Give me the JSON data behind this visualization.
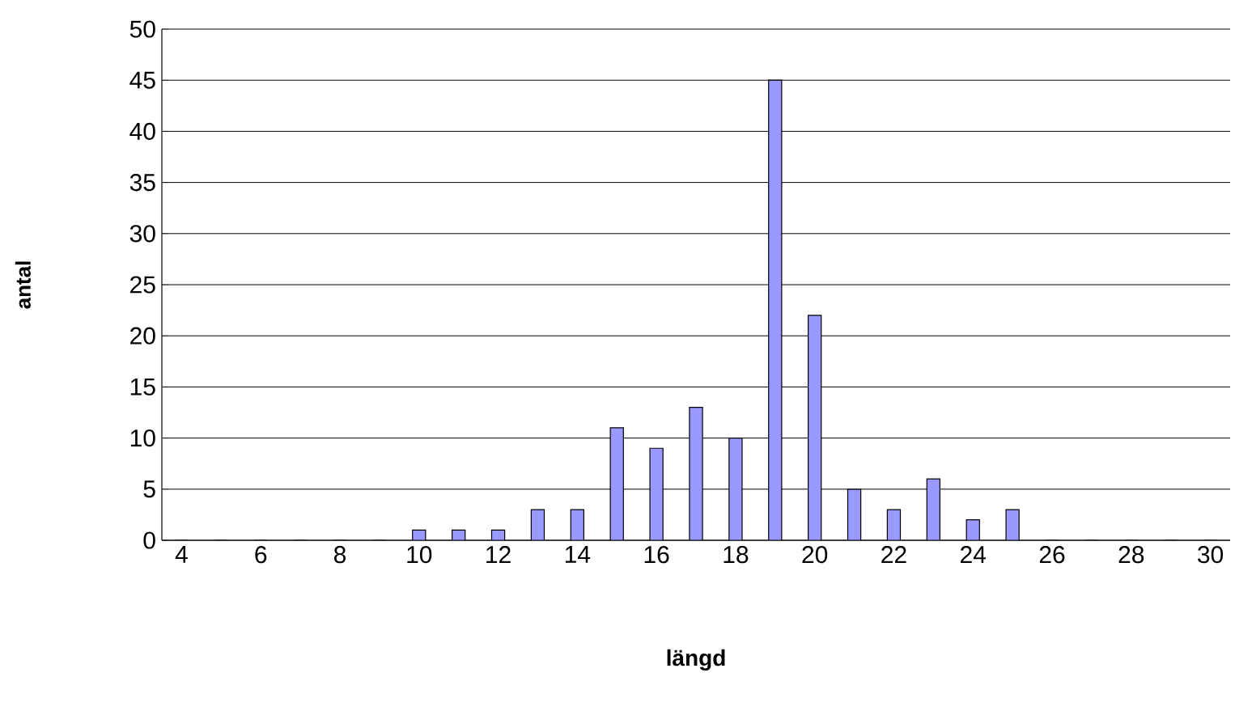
{
  "chart_data": {
    "type": "bar",
    "xlabel": "längd",
    "ylabel": "antal",
    "categories": [
      "4",
      null,
      "6",
      null,
      "8",
      null,
      "10",
      null,
      "12",
      null,
      "14",
      null,
      "16",
      null,
      "18",
      null,
      "20",
      null,
      "22",
      null,
      "24",
      null,
      "26",
      null,
      "28",
      null,
      "30"
    ],
    "values": [
      0,
      0,
      0,
      0,
      0,
      0,
      1,
      1,
      1,
      3,
      3,
      11,
      9,
      13,
      10,
      45,
      22,
      5,
      3,
      6,
      2,
      3,
      0,
      0,
      0,
      0,
      0
    ],
    "color": "#9999ff",
    "ylim": [
      0,
      50
    ],
    "yticks": [
      0,
      5,
      10,
      15,
      20,
      25,
      30,
      35,
      40,
      45,
      50
    ],
    "grid": "y"
  }
}
